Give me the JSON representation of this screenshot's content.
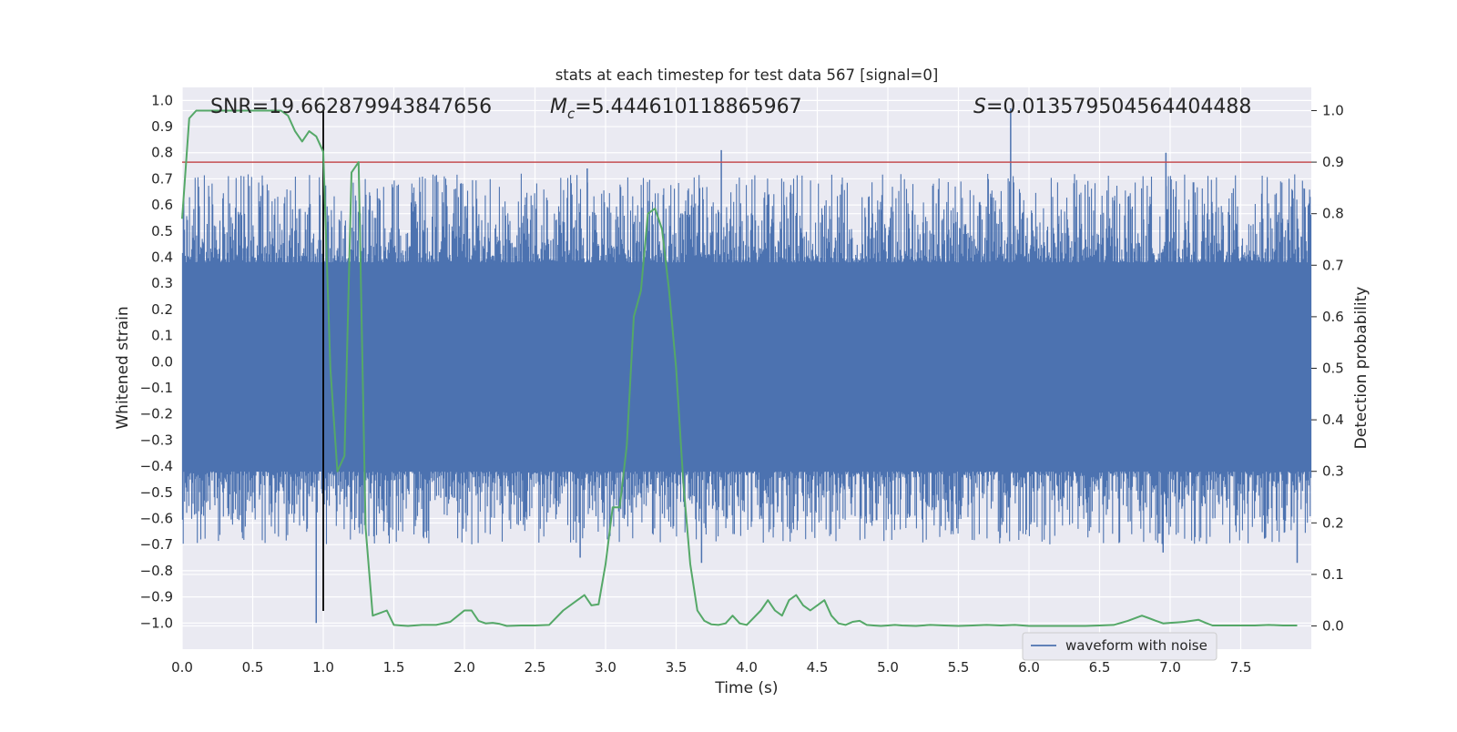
{
  "chart_data": {
    "type": "line",
    "title": "stats at each timestep for test data 567 [signal=0]",
    "xlabel": "Time (s)",
    "ylabel_left": "Whitened strain",
    "ylabel_right": "Detection probability",
    "xlim": [
      0.0,
      8.0
    ],
    "ylim_left": [
      -1.1,
      1.05
    ],
    "ylim_right": [
      -0.045,
      1.045
    ],
    "xticks": [
      "0.0",
      "0.5",
      "1.0",
      "1.5",
      "2.0",
      "2.5",
      "3.0",
      "3.5",
      "4.0",
      "4.5",
      "5.0",
      "5.5",
      "6.0",
      "6.5",
      "7.0",
      "7.5"
    ],
    "yticks_left": [
      "1.0",
      "0.9",
      "0.8",
      "0.7",
      "0.6",
      "0.5",
      "0.4",
      "0.3",
      "0.2",
      "0.1",
      "0.0",
      "-0.1",
      "-0.2",
      "-0.3",
      "-0.4",
      "-0.5",
      "-0.6",
      "-0.7",
      "-0.8",
      "-0.9",
      "-1.0"
    ],
    "yticks_right": [
      "1.0",
      "0.9",
      "0.8",
      "0.7",
      "0.6",
      "0.5",
      "0.4",
      "0.3",
      "0.2",
      "0.1",
      "0.0"
    ],
    "grid": true,
    "legend_position": "lower-right",
    "annotations": {
      "snr": "SNR=19.662879943847656",
      "mc_prefix": "M",
      "mc_sub": "c",
      "mc_value": "=5.444610118865967",
      "s_prefix": "S",
      "s_value": "=0.013579504564404488"
    },
    "series": [
      {
        "name": "waveform with noise",
        "axis": "left",
        "color": "#4c72b0",
        "core_band": [
          -0.42,
          0.38
        ],
        "peaks": [
          {
            "x": 0.95,
            "y": -1.0
          },
          {
            "x": 1.0,
            "y": 0.62
          },
          {
            "x": 2.82,
            "y": -0.75
          },
          {
            "x": 2.87,
            "y": 0.74
          },
          {
            "x": 3.68,
            "y": -0.77
          },
          {
            "x": 3.82,
            "y": 0.81
          },
          {
            "x": 5.87,
            "y": 0.97
          },
          {
            "x": 6.95,
            "y": -0.73
          },
          {
            "x": 6.97,
            "y": 0.8
          },
          {
            "x": 7.9,
            "y": -0.77
          }
        ]
      },
      {
        "name": "",
        "axis": "right",
        "color": "#55a868",
        "x": [
          0.0,
          0.05,
          0.1,
          0.2,
          0.3,
          0.4,
          0.5,
          0.6,
          0.7,
          0.75,
          0.8,
          0.85,
          0.9,
          0.95,
          1.0,
          1.05,
          1.1,
          1.15,
          1.2,
          1.25,
          1.3,
          1.35,
          1.4,
          1.45,
          1.5,
          1.55,
          1.6,
          1.7,
          1.8,
          1.9,
          2.0,
          2.05,
          2.1,
          2.15,
          2.2,
          2.25,
          2.3,
          2.4,
          2.5,
          2.6,
          2.7,
          2.8,
          2.85,
          2.9,
          2.95,
          3.0,
          3.05,
          3.1,
          3.15,
          3.2,
          3.25,
          3.3,
          3.35,
          3.4,
          3.45,
          3.5,
          3.55,
          3.6,
          3.65,
          3.7,
          3.75,
          3.8,
          3.85,
          3.9,
          3.95,
          4.0,
          4.1,
          4.15,
          4.2,
          4.25,
          4.3,
          4.35,
          4.4,
          4.45,
          4.5,
          4.55,
          4.6,
          4.65,
          4.7,
          4.75,
          4.8,
          4.85,
          4.9,
          4.95,
          5.0,
          5.05,
          5.1,
          5.2,
          5.3,
          5.4,
          5.5,
          5.6,
          5.7,
          5.8,
          5.9,
          6.0,
          6.05,
          6.1,
          6.2,
          6.3,
          6.4,
          6.5,
          6.6,
          6.7,
          6.8,
          6.85,
          6.9,
          6.95,
          7.0,
          7.05,
          7.1,
          7.15,
          7.2,
          7.25,
          7.3,
          7.4,
          7.5,
          7.6,
          7.7,
          7.8,
          7.9
        ],
        "values": [
          0.79,
          0.985,
          1.0,
          1.0,
          1.0,
          1.0,
          1.0,
          1.0,
          1.0,
          0.99,
          0.96,
          0.94,
          0.96,
          0.95,
          0.92,
          0.5,
          0.3,
          0.33,
          0.88,
          0.9,
          0.19,
          0.02,
          0.025,
          0.03,
          0.002,
          0.001,
          0.0,
          0.002,
          0.002,
          0.008,
          0.03,
          0.03,
          0.01,
          0.005,
          0.006,
          0.004,
          0.0,
          0.001,
          0.001,
          0.002,
          0.03,
          0.05,
          0.06,
          0.04,
          0.042,
          0.12,
          0.23,
          0.23,
          0.35,
          0.6,
          0.65,
          0.8,
          0.81,
          0.77,
          0.65,
          0.5,
          0.28,
          0.12,
          0.03,
          0.01,
          0.003,
          0.002,
          0.005,
          0.02,
          0.005,
          0.002,
          0.03,
          0.05,
          0.03,
          0.02,
          0.05,
          0.06,
          0.04,
          0.03,
          0.04,
          0.05,
          0.02,
          0.005,
          0.002,
          0.008,
          0.01,
          0.002,
          0.001,
          0.0,
          0.001,
          0.002,
          0.001,
          0.0,
          0.002,
          0.001,
          0.0,
          0.001,
          0.002,
          0.001,
          0.002,
          0.0,
          0.0,
          0.0,
          0.0,
          0.0,
          0.0,
          0.001,
          0.002,
          0.01,
          0.02,
          0.015,
          0.01,
          0.005,
          0.006,
          0.007,
          0.008,
          0.01,
          0.012,
          0.006,
          0.001,
          0.001,
          0.001,
          0.001,
          0.002,
          0.001,
          0.001
        ]
      }
    ],
    "reference_lines": [
      {
        "orientation": "horizontal",
        "axis": "right",
        "y": 0.9,
        "color": "#c44e52"
      },
      {
        "orientation": "vertical",
        "x": 1.0,
        "color": "#000000"
      }
    ]
  }
}
